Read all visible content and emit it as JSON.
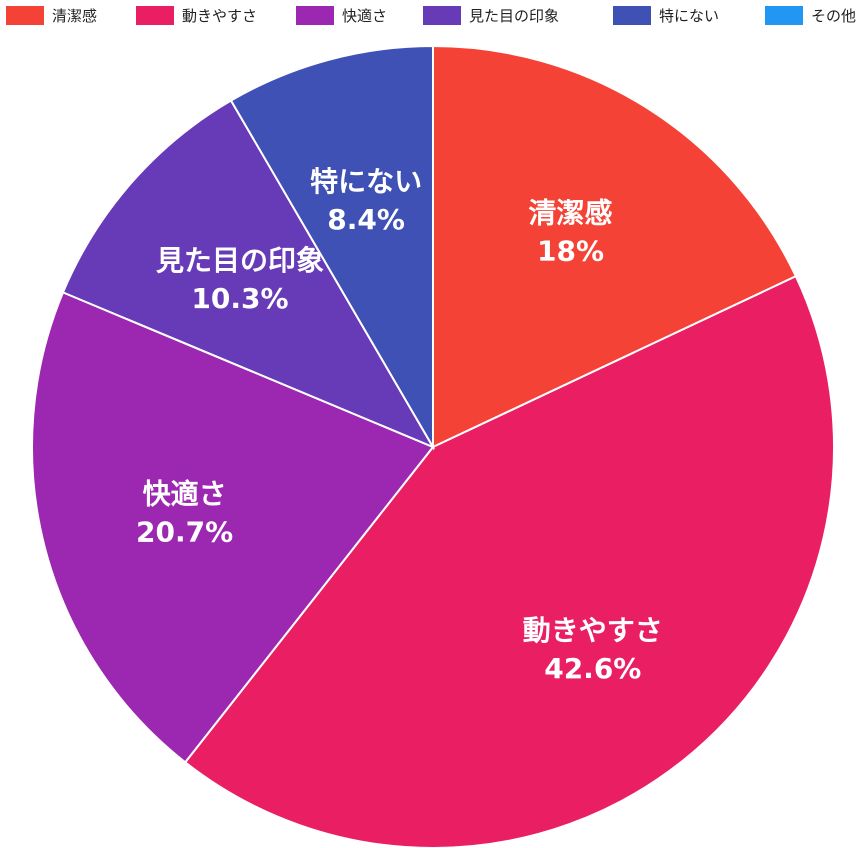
{
  "chart_data": {
    "type": "pie",
    "title": "",
    "categories": [
      "清潔感",
      "動きやすさ",
      "快適さ",
      "見た目の印象",
      "特にない",
      "その他"
    ],
    "values": [
      18,
      42.6,
      20.7,
      10.3,
      8.4,
      0
    ],
    "value_labels": [
      "18%",
      "42.6%",
      "20.7%",
      "10.3%",
      "8.4%",
      ""
    ],
    "colors": [
      "#f44336",
      "#e91e63",
      "#9c27b0",
      "#673ab7",
      "#3f51b5",
      "#2196f3"
    ],
    "legend": {
      "position": "top-left"
    },
    "start_angle": "12 o'clock",
    "direction": "clockwise"
  }
}
